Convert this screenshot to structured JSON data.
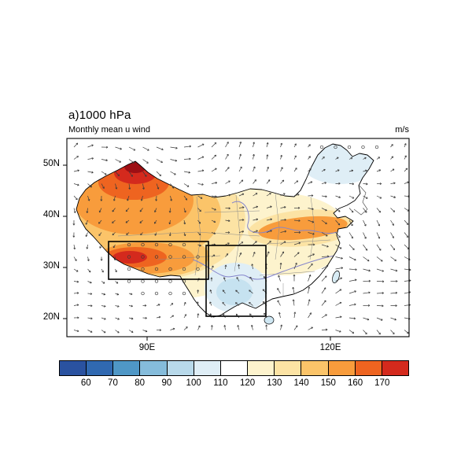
{
  "chart_data": {
    "type": "heatmap",
    "variant": "filled contour map of China with wind vector overlay",
    "title": "a)1000 hPa",
    "subtitle": "Monthly mean u wind",
    "units": "m/s",
    "y_axis": {
      "ticks": [
        "50N",
        "40N",
        "30N",
        "20N"
      ]
    },
    "x_axis": {
      "ticks": [
        "90E",
        "120E"
      ]
    },
    "colorbar": {
      "tick_labels": [
        "60",
        "70",
        "80",
        "90",
        "100",
        "110",
        "120",
        "130",
        "140",
        "150",
        "160",
        "170"
      ],
      "colors": [
        "#2a52a0",
        "#3069b1",
        "#4f97c6",
        "#85bcdb",
        "#b8d9ea",
        "#dfeef6",
        "#ffffff",
        "#fdf3cd",
        "#fce3a4",
        "#fbc469",
        "#f89c3c",
        "#ee6420",
        "#d42a1d"
      ],
      "outline_color": "#000000"
    },
    "map_colors": {
      "max_core": "#9d0f14",
      "river": "#8585cc",
      "province_border": "#8a8a8a",
      "vector": "#3a3a3a"
    },
    "overlays": {
      "wind_vectors": true,
      "study_region_boxes": 2
    }
  }
}
